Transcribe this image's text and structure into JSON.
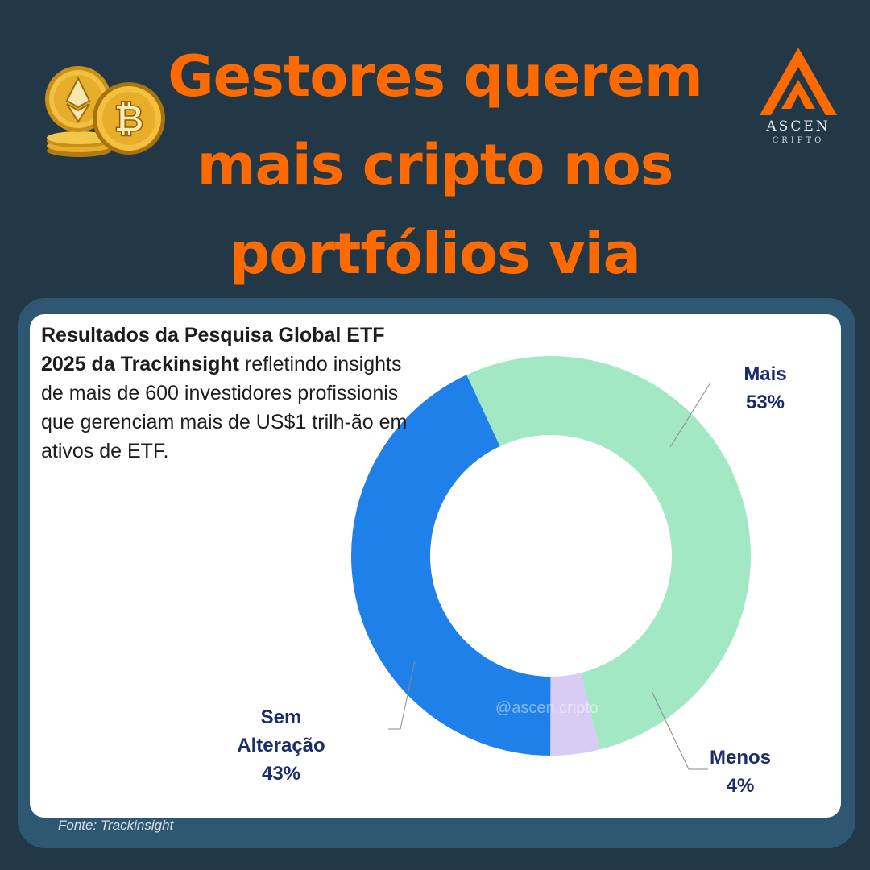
{
  "header": {
    "title_lines": [
      "Gestores querem",
      "mais cripto nos",
      "portfólios via ETFs"
    ]
  },
  "logo": {
    "name": "ASCEN",
    "sub": "CRIPTO",
    "color": "#ff6a00"
  },
  "coins_icon": "bitcoin-ethereum-coins-icon",
  "intro": {
    "bold": "Resultados da Pesquisa Global ETF 2025 da Trackinsight",
    "rest": " refletindo insights de mais de 600 investidores profissionis  que gerenciam mais de US$1 trilh-ão em ativos de ETF."
  },
  "watermark": "@ascen.cripto",
  "source": "Fonte: Trackinsight",
  "chart_data": {
    "type": "pie",
    "style": "donut",
    "categories": [
      "Mais",
      "Menos",
      "Sem Alteração"
    ],
    "values": [
      53,
      4,
      43
    ],
    "value_labels": [
      "53%",
      "4%",
      "43%"
    ],
    "label_lines": [
      [
        "Mais",
        "53%"
      ],
      [
        "Menos",
        "4%"
      ],
      [
        "Sem",
        "Alteração",
        "43%"
      ]
    ],
    "colors": [
      "#a3e8c4",
      "#d9ccf4",
      "#1e80e8"
    ]
  }
}
